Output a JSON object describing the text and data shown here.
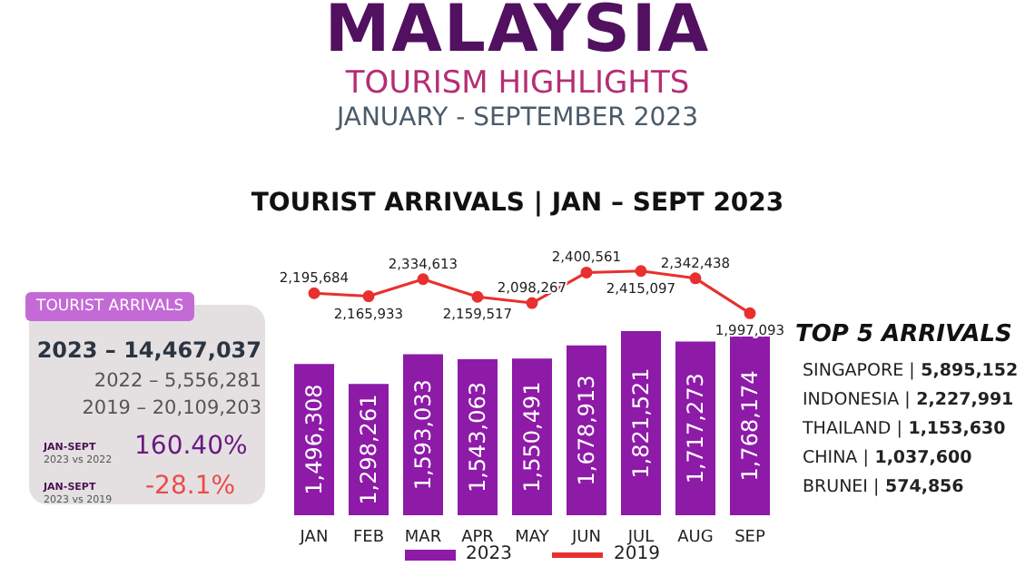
{
  "chart_data": {
    "type": "bar",
    "title": "MALAYSIA",
    "subtitle": "TOURISM HIGHLIGHTS",
    "annotations": [
      "JANUARY - SEPTEMBER 2023",
      "TOURIST ARRIVALS | JAN – SEPT 2023",
      "TOURIST ARRIVALS",
      "2023 – 14,467,037",
      "2022 – 5,556,281",
      "2019 – 20,109,203",
      "JAN-SEPT",
      "2023 vs 2022",
      "160.40%",
      "JAN-SEPT",
      "2023 vs 2019",
      "-28.1%",
      "TOP 5 ARRIVALS",
      "SINGAPORE | 5,895,152",
      "INDONESIA | 2,227,991",
      "THAILAND | 1,153,630",
      "CHINA | 1,037,600",
      "BRUNEI | 574,856"
    ],
    "categories": [
      "JAN",
      "FEB",
      "MAR",
      "APR",
      "MAY",
      "JUN",
      "JUL",
      "AUG",
      "SEP"
    ],
    "series": [
      {
        "name": "2023",
        "color": "#8e1aa8",
        "values": [
          1496308,
          1298261,
          1593033,
          1543063,
          1550491,
          1678913,
          1821521,
          1717273,
          1768174
        ],
        "value_labels": [
          "1,496,308",
          "1,298,261",
          "1,593,033",
          "1,543,063",
          "1,550,491",
          "1,678,913",
          "1,821,521",
          "1,717,273",
          "1,768,174"
        ]
      },
      {
        "name": "2019",
        "type": "line",
        "color": "#e8302f",
        "marker": "circle",
        "values": [
          2195684,
          2165933,
          2334613,
          2159517,
          2098267,
          2400561,
          2415097,
          2342438,
          1997093
        ],
        "value_labels": [
          "2,195,684",
          "2,165,933",
          "2,334,613",
          "2,159,517",
          "2,098,267",
          "2,400,561",
          "2,415,097",
          "2,342,438",
          "1,997,093"
        ]
      }
    ],
    "legend": "bottom",
    "tick_labels": "x"
  }
}
